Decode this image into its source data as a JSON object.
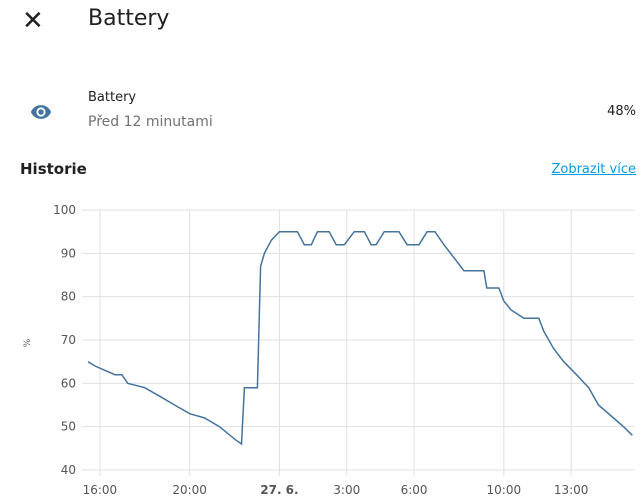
{
  "header": {
    "title": "Battery"
  },
  "entity": {
    "name": "Battery",
    "last_changed": "Před 12 minutami",
    "state": "48%"
  },
  "history": {
    "title": "Historie",
    "link": "Zobrazit více"
  },
  "chart_data": {
    "type": "line",
    "y_label": "%",
    "xlim": [
      15.47,
      39.8
    ],
    "ylim": [
      40,
      100
    ],
    "xticks": [
      {
        "value": 16,
        "label": "16:00"
      },
      {
        "value": 20,
        "label": "20:00"
      },
      {
        "value": 24,
        "label": "27. 6."
      },
      {
        "value": 27,
        "label": "3:00"
      },
      {
        "value": 30,
        "label": "6:00"
      },
      {
        "value": 34,
        "label": "10:00"
      },
      {
        "value": 37,
        "label": "13:00"
      }
    ],
    "yticks": [
      40,
      50,
      60,
      70,
      80,
      90,
      100
    ],
    "grid": true,
    "series": [
      {
        "name": "Battery",
        "color": "#44739e",
        "x": [
          15.47,
          15.78,
          16.22,
          16.67,
          16.98,
          17.24,
          18,
          18.67,
          19.33,
          20,
          20.67,
          21.33,
          22.04,
          22.31,
          22.44,
          23.02,
          23.16,
          23.33,
          23.64,
          24,
          24.8,
          25.11,
          25.42,
          25.69,
          26.22,
          26.53,
          26.89,
          27.33,
          27.78,
          28.09,
          28.31,
          28.67,
          29.33,
          29.69,
          30.22,
          30.58,
          30.93,
          31.33,
          31.78,
          32.22,
          33.11,
          33.24,
          33.78,
          34,
          34.31,
          34.89,
          35.56,
          35.78,
          36.22,
          36.67,
          37.24,
          37.78,
          38.22,
          38.89,
          39.33,
          39.73
        ],
        "values": [
          65,
          64,
          63,
          62,
          62,
          60,
          59,
          57,
          55,
          53,
          52,
          50,
          47,
          46,
          59,
          59,
          87,
          90,
          93,
          95,
          95,
          92,
          92,
          95,
          95,
          92,
          92,
          95,
          95,
          92,
          92,
          95,
          95,
          92,
          92,
          95,
          95,
          92,
          89,
          86,
          86,
          82,
          82,
          79,
          77,
          75,
          75,
          72,
          68,
          65,
          62,
          59,
          55,
          52,
          50,
          48
        ]
      }
    ]
  }
}
